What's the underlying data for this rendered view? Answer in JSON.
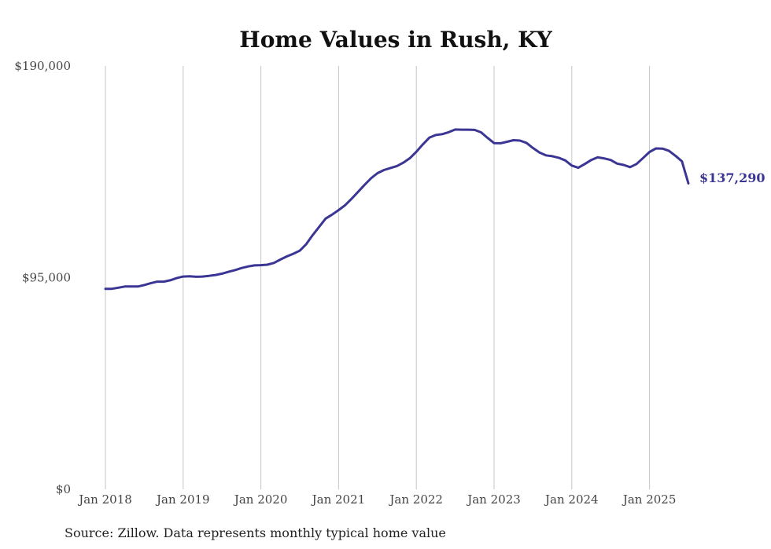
{
  "chart_data": {
    "type": "line",
    "title": "Home Values in Rush, KY",
    "xlabel": "",
    "ylabel": "",
    "source": "Source: Zillow. Data represents monthly typical home value",
    "y_ticks": [
      "$0",
      "$95,000",
      "$190,000"
    ],
    "y_tick_values": [
      0,
      95000,
      190000
    ],
    "ylim": [
      0,
      190000
    ],
    "x_ticks": [
      "Jan 2018",
      "Jan 2019",
      "Jan 2020",
      "Jan 2021",
      "Jan 2022",
      "Jan 2023",
      "Jan 2024",
      "Jan 2025"
    ],
    "x_tick_dates": [
      "2018-01",
      "2019-01",
      "2020-01",
      "2021-01",
      "2022-01",
      "2023-01",
      "2024-01",
      "2025-01"
    ],
    "xlim": [
      "2018-01",
      "2025-07"
    ],
    "grid": "vertical",
    "line_color": "#3b3594",
    "end_label": "$137,290",
    "series": [
      {
        "x": [
          "2018-01",
          "2018-02",
          "2018-03",
          "2018-04",
          "2018-05",
          "2018-06",
          "2018-07",
          "2018-08",
          "2018-09",
          "2018-10",
          "2018-11",
          "2018-12",
          "2019-01",
          "2019-02",
          "2019-03",
          "2019-04",
          "2019-05",
          "2019-06",
          "2019-07",
          "2019-08",
          "2019-09",
          "2019-10",
          "2019-11",
          "2019-12",
          "2020-01",
          "2020-02",
          "2020-03",
          "2020-04",
          "2020-05",
          "2020-06",
          "2020-07",
          "2020-08",
          "2020-09",
          "2020-10",
          "2020-11",
          "2020-12",
          "2021-01",
          "2021-02",
          "2021-03",
          "2021-04",
          "2021-05",
          "2021-06",
          "2021-07",
          "2021-08",
          "2021-09",
          "2021-10",
          "2021-11",
          "2021-12",
          "2022-01",
          "2022-02",
          "2022-03",
          "2022-04",
          "2022-05",
          "2022-06",
          "2022-07",
          "2022-08",
          "2022-09",
          "2022-10",
          "2022-11",
          "2022-12",
          "2023-01",
          "2023-02",
          "2023-03",
          "2023-04",
          "2023-05",
          "2023-06",
          "2023-07",
          "2023-08",
          "2023-09",
          "2023-10",
          "2023-11",
          "2023-12",
          "2024-01",
          "2024-02",
          "2024-03",
          "2024-04",
          "2024-05",
          "2024-06",
          "2024-07",
          "2024-08",
          "2024-09",
          "2024-10",
          "2024-11",
          "2024-12",
          "2025-01",
          "2025-02",
          "2025-03",
          "2025-04",
          "2025-05",
          "2025-06",
          "2025-07"
        ],
        "values": [
          90000,
          90000,
          90500,
          91000,
          91000,
          91000,
          91700,
          92500,
          93200,
          93200,
          93800,
          94800,
          95500,
          95600,
          95400,
          95500,
          95800,
          96200,
          96800,
          97600,
          98400,
          99300,
          100000,
          100500,
          100600,
          100800,
          101600,
          103100,
          104500,
          105700,
          107100,
          110000,
          114100,
          117800,
          121500,
          123300,
          125300,
          127500,
          130400,
          133500,
          136600,
          139600,
          141900,
          143300,
          144200,
          145100,
          146600,
          148600,
          151500,
          154800,
          157800,
          159000,
          159400,
          160300,
          161500,
          161400,
          161400,
          161300,
          160200,
          157700,
          155400,
          155300,
          156000,
          156700,
          156500,
          155500,
          153200,
          151200,
          149900,
          149500,
          148800,
          147600,
          145300,
          144300,
          146000,
          147800,
          149000,
          148500,
          147800,
          146200,
          145600,
          144600,
          146000,
          148700,
          151400,
          153000,
          152900,
          151900,
          149700,
          147200,
          137290
        ]
      }
    ]
  }
}
